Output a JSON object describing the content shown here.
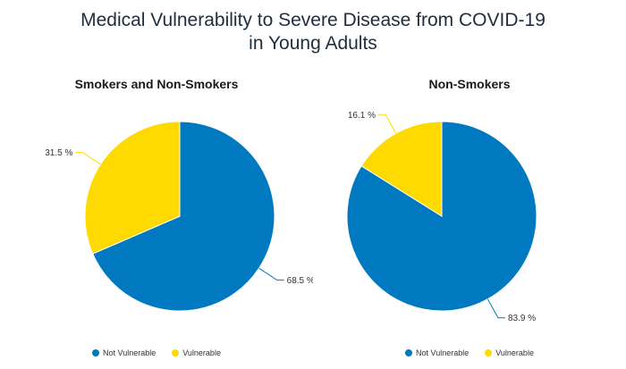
{
  "title_lines": [
    "Medical Vulnerability to Severe Disease from COVID-19",
    "in Young Adults"
  ],
  "colors": {
    "not_vulnerable": "#0079C1",
    "vulnerable": "#FFDA00"
  },
  "chart_data": [
    {
      "type": "pie",
      "title": "Smokers and Non-Smokers",
      "slices": [
        {
          "label": "Vulnerable",
          "value": 31.5,
          "display": "31.5 %"
        },
        {
          "label": "Not Vulnerable",
          "value": 68.5,
          "display": "68.5 %"
        }
      ],
      "legend": [
        "Not Vulnerable",
        "Vulnerable"
      ],
      "legend_position": "bottom"
    },
    {
      "type": "pie",
      "title": "Non-Smokers",
      "slices": [
        {
          "label": "Vulnerable",
          "value": 16.1,
          "display": "16.1 %"
        },
        {
          "label": "Not Vulnerable",
          "value": 83.9,
          "display": "83.9 %"
        }
      ],
      "legend": [
        "Not Vulnerable",
        "Vulnerable"
      ],
      "legend_position": "bottom"
    }
  ]
}
